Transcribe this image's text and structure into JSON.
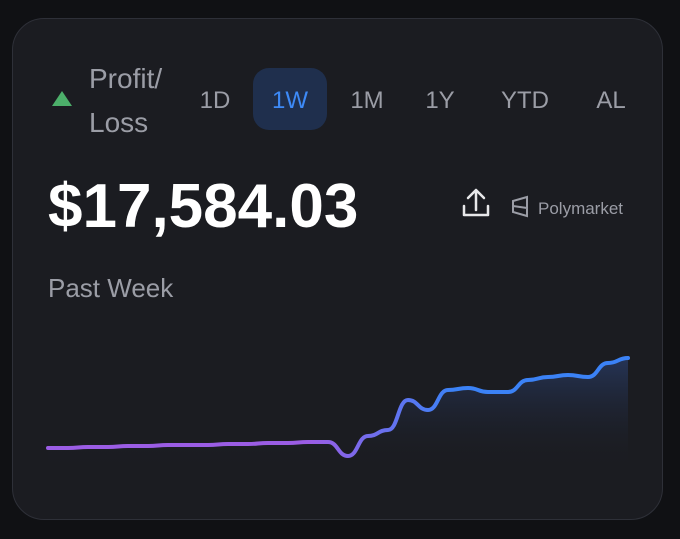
{
  "header": {
    "title_lines": [
      "Profit/",
      "Loss"
    ],
    "tabs": [
      "1D",
      "1W",
      "1M",
      "1Y",
      "YTD",
      "AL"
    ],
    "active_tab": 1
  },
  "amount": "$17,584.03",
  "brand": "Polymarket",
  "period": "Past Week",
  "chart_data": {
    "type": "line",
    "values": [
      0,
      0,
      1,
      1,
      2,
      2,
      3,
      3,
      3,
      4,
      4,
      5,
      5,
      6,
      6,
      -8,
      12,
      18,
      48,
      38,
      58,
      60,
      56,
      56,
      68,
      71,
      73,
      71,
      85,
      90
    ],
    "ylim": [
      -10,
      90
    ],
    "color": [
      "#9b5de5",
      "#3b82f6"
    ]
  }
}
